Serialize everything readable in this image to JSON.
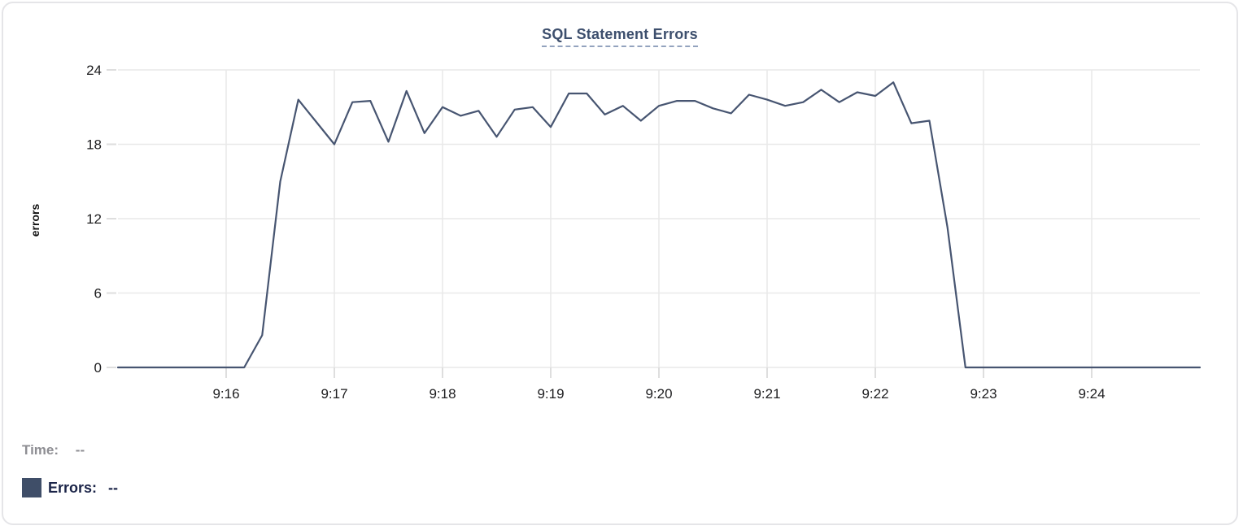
{
  "chart": {
    "title": "SQL Statement Errors"
  },
  "readout": {
    "time_label": "Time:",
    "time_value": "--",
    "errors_label": "Errors:",
    "errors_value": "--"
  },
  "colors": {
    "line": "#475571",
    "title": "#3D4F6D",
    "title_underline": "#93A3BE",
    "grid": "#E9E9E9",
    "tick_mark": "#DEDEDE",
    "tick_text": "#1D1D1F",
    "axis_label_text": "#111111",
    "time_label": "#8E8E93",
    "errors_text": "#1B2448",
    "swatch": "#3F4E68",
    "card_border": "#E5E5E8"
  },
  "chart_data": {
    "type": "line",
    "title": "SQL Statement Errors",
    "xlabel": "",
    "ylabel": "errors",
    "grid": true,
    "legend_position": "bottom-left",
    "ylim": [
      0,
      24
    ],
    "y_ticks": [
      0,
      6,
      12,
      18,
      24
    ],
    "x_ticks": [
      "9:16",
      "9:17",
      "9:18",
      "9:19",
      "9:20",
      "9:21",
      "9:22",
      "9:23",
      "9:24"
    ],
    "x_range": [
      "9:15:00",
      "9:25:00"
    ],
    "series": [
      {
        "name": "Errors",
        "color": "#475571",
        "times": [
          "9:15:00",
          "9:15:10",
          "9:15:20",
          "9:15:30",
          "9:15:40",
          "9:15:50",
          "9:16:00",
          "9:16:10",
          "9:16:20",
          "9:16:30",
          "9:16:40",
          "9:16:50",
          "9:17:00",
          "9:17:10",
          "9:17:20",
          "9:17:30",
          "9:17:40",
          "9:17:50",
          "9:18:00",
          "9:18:10",
          "9:18:20",
          "9:18:30",
          "9:18:40",
          "9:18:50",
          "9:19:00",
          "9:19:10",
          "9:19:20",
          "9:19:30",
          "9:19:40",
          "9:19:50",
          "9:20:00",
          "9:20:10",
          "9:20:20",
          "9:20:30",
          "9:20:40",
          "9:20:50",
          "9:21:00",
          "9:21:10",
          "9:21:20",
          "9:21:30",
          "9:21:40",
          "9:21:50",
          "9:22:00",
          "9:22:10",
          "9:22:20",
          "9:22:30",
          "9:22:40",
          "9:22:50",
          "9:23:00",
          "9:23:10",
          "9:23:20",
          "9:23:30",
          "9:23:40",
          "9:23:50",
          "9:24:00",
          "9:24:10",
          "9:24:20",
          "9:24:30",
          "9:24:40",
          "9:24:50",
          "9:25:00"
        ],
        "values": [
          0,
          0,
          0,
          0,
          0,
          0,
          0,
          0,
          2.6,
          15,
          21.6,
          19.8,
          18,
          21.4,
          21.5,
          18.2,
          22.3,
          18.9,
          21,
          20.3,
          20.7,
          18.6,
          20.8,
          21,
          19.4,
          22.1,
          22.1,
          20.4,
          21.1,
          19.9,
          21.1,
          21.5,
          21.5,
          20.9,
          20.5,
          22,
          21.6,
          21.1,
          21.4,
          22.4,
          21.4,
          22.2,
          21.9,
          23,
          19.7,
          19.9,
          11.3,
          0,
          0,
          0,
          0,
          0,
          0,
          0,
          0,
          0,
          0,
          0,
          0,
          0,
          0
        ]
      }
    ]
  }
}
